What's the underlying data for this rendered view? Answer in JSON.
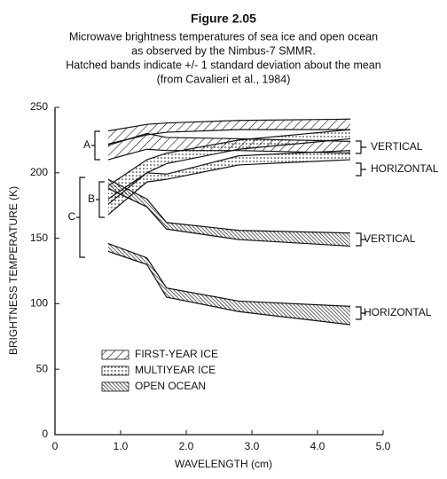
{
  "chart_data": {
    "type": "band",
    "title": "Figure 2.05",
    "subtitle": [
      "Microwave brightness temperatures of sea ice and open ocean",
      "as observed by the Nimbus-7 SMMR.",
      "Hatched bands indicate +/- 1 standard deviation about the mean",
      "(from Cavalieri et al., 1984)"
    ],
    "x_label": "WAVELENGTH (cm)",
    "y_label": "BRIGHTNESS TEMPERATURE (K)",
    "x": [
      0.81,
      1.4,
      1.7,
      2.8,
      4.5
    ],
    "xlim": [
      0,
      5
    ],
    "xticks": [
      0,
      {
        "value": 1,
        "label": "1.0"
      },
      {
        "value": 2,
        "label": "2.0"
      },
      {
        "value": 3,
        "label": "3.0"
      },
      {
        "value": 4,
        "label": "4.0"
      },
      {
        "value": 5,
        "label": "5.0"
      }
    ],
    "ylim": [
      0,
      250
    ],
    "yticks": [
      0,
      50,
      100,
      150,
      200,
      250
    ],
    "series": [
      {
        "name": "FIRST-YEAR ICE",
        "hatch": "diagonal",
        "bands": [
          {
            "upper": [
              232,
              237,
              238,
              240,
              241
            ],
            "lower": [
              222,
              229,
              231,
              233,
              233
            ]
          },
          {
            "upper": [
              221,
              230,
              227,
              226,
              224
            ],
            "lower": [
              210,
              218,
              217,
              217,
              215
            ]
          }
        ]
      },
      {
        "name": "MULTIYEAR ICE",
        "hatch": "dotted",
        "bands": [
          {
            "upper": [
              190,
              210,
              215,
              225,
              233
            ],
            "lower": [
              176,
              200,
              207,
              218,
              226
            ]
          },
          {
            "upper": [
              180,
              200,
              199,
              213,
              217
            ],
            "lower": [
              168,
              193,
              195,
              206,
              210
            ]
          }
        ]
      },
      {
        "name": "OPEN OCEAN",
        "hatch": "dense",
        "bands": [
          {
            "upper": [
              195,
              180,
              162,
              156,
              154
            ],
            "lower": [
              188,
              174,
              157,
              149,
              144
            ]
          },
          {
            "upper": [
              146,
              135,
              112,
              102,
              98
            ],
            "lower": [
              140,
              130,
              105,
              94,
              84
            ]
          }
        ]
      }
    ],
    "annotations": [
      "VERTICAL",
      "HORIZONTAL",
      "VERTICAL",
      "HORIZONTAL"
    ],
    "brackets": [
      "A",
      "B",
      "C"
    ]
  }
}
